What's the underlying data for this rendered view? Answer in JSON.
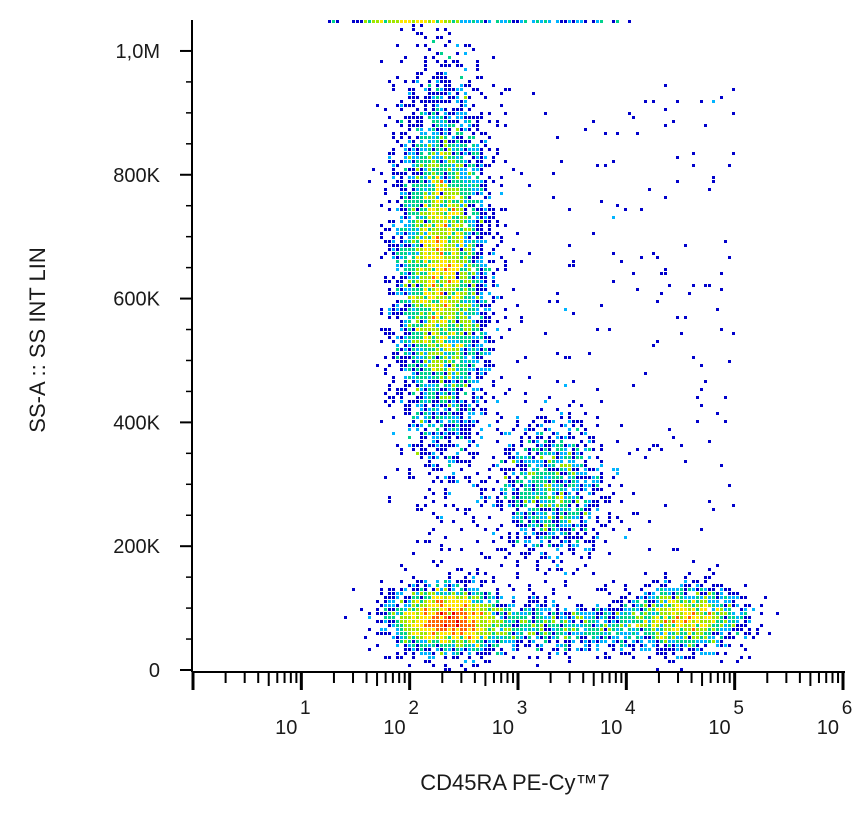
{
  "chart_data": {
    "type": "scatter",
    "subtype": "flow-cytometry-density-dot-plot",
    "xlabel": "CD45RA PE-Cy™7",
    "ylabel": "SS-A :: SS INT LIN",
    "x_scale": "log",
    "y_scale": "linear",
    "xlim": [
      1,
      1000000
    ],
    "ylim": [
      0,
      1050000
    ],
    "x_ticks": [
      {
        "value": 10,
        "base": "10",
        "exp": "1"
      },
      {
        "value": 100,
        "base": "10",
        "exp": "2"
      },
      {
        "value": 1000,
        "base": "10",
        "exp": "3"
      },
      {
        "value": 10000,
        "base": "10",
        "exp": "4"
      },
      {
        "value": 100000,
        "base": "10",
        "exp": "5"
      },
      {
        "value": 1000000,
        "base": "10",
        "exp": "6"
      }
    ],
    "y_ticks": [
      {
        "value": 0,
        "label": "0"
      },
      {
        "value": 200000,
        "label": "200K"
      },
      {
        "value": 400000,
        "label": "400K"
      },
      {
        "value": 600000,
        "label": "600K"
      },
      {
        "value": 800000,
        "label": "800K"
      },
      {
        "value": 1000000,
        "label": "1,0M"
      }
    ],
    "density_colormap": [
      "#0000cc",
      "#00b4ff",
      "#00d28c",
      "#a0e600",
      "#ffe600",
      "#ff6400",
      "#e60000"
    ],
    "populations": [
      {
        "log10_x_center": 2.3,
        "log10_x_sd": 0.2,
        "y_center": 650000,
        "y_sd": 140000,
        "relative_count": 0.48
      },
      {
        "log10_x_center": 3.3,
        "log10_x_sd": 0.25,
        "y_center": 290000,
        "y_sd": 55000,
        "relative_count": 0.1
      },
      {
        "log10_x_center": 2.35,
        "log10_x_sd": 0.25,
        "y_center": 80000,
        "y_sd": 25000,
        "relative_count": 0.22
      },
      {
        "log10_x_center": 4.55,
        "log10_x_sd": 0.25,
        "y_center": 85000,
        "y_sd": 25000,
        "relative_count": 0.12
      },
      {
        "log10_x_center": 3.4,
        "log10_x_sd": 0.6,
        "y_center": 70000,
        "y_sd": 20000,
        "relative_count": 0.08
      }
    ]
  }
}
